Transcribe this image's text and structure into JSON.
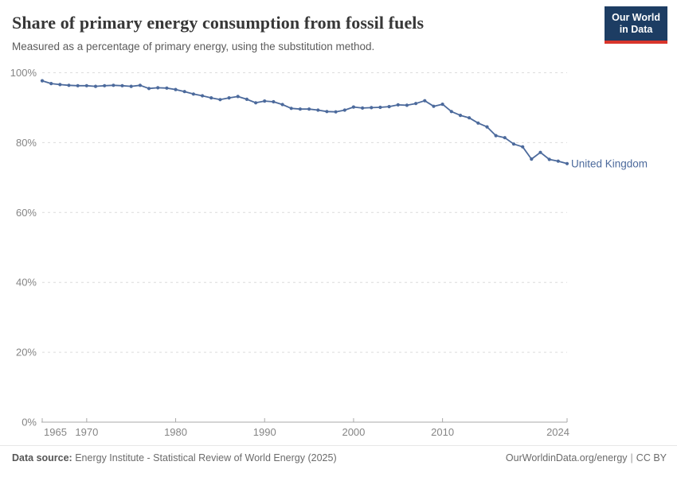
{
  "header": {
    "title": "Share of primary energy consumption from fossil fuels",
    "subtitle": "Measured as a percentage of primary energy, using the substitution method.",
    "logo": {
      "line1": "Our World",
      "line2": "in Data"
    }
  },
  "chart_data": {
    "type": "line",
    "title": "Share of primary energy consumption from fossil fuels",
    "entity_label": "United Kingdom",
    "xlim": [
      1965,
      2024
    ],
    "ylim": [
      0,
      100
    ],
    "grid": "horizontal-dashed",
    "legend_position": "line-end-label",
    "line_color": "#4c6a9c",
    "grid_color": "#dcdcdc",
    "axis_color": "#a8a8a8",
    "tick_label_color": "#858585",
    "y_ticks": [
      {
        "value": 0,
        "label": "0%"
      },
      {
        "value": 20,
        "label": "20%"
      },
      {
        "value": 40,
        "label": "40%"
      },
      {
        "value": 60,
        "label": "60%"
      },
      {
        "value": 80,
        "label": "80%"
      },
      {
        "value": 100,
        "label": "100%"
      }
    ],
    "x_ticks": [
      {
        "value": 1965,
        "label": "1965"
      },
      {
        "value": 1970,
        "label": "1970"
      },
      {
        "value": 1980,
        "label": "1980"
      },
      {
        "value": 1990,
        "label": "1990"
      },
      {
        "value": 2000,
        "label": "2000"
      },
      {
        "value": 2010,
        "label": "2010"
      },
      {
        "value": 2024,
        "label": "2024"
      }
    ],
    "series": [
      {
        "name": "United Kingdom",
        "x": [
          1965,
          1966,
          1967,
          1968,
          1969,
          1970,
          1971,
          1972,
          1973,
          1974,
          1975,
          1976,
          1977,
          1978,
          1979,
          1980,
          1981,
          1982,
          1983,
          1984,
          1985,
          1986,
          1987,
          1988,
          1989,
          1990,
          1991,
          1992,
          1993,
          1994,
          1995,
          1996,
          1997,
          1998,
          1999,
          2000,
          2001,
          2002,
          2003,
          2004,
          2005,
          2006,
          2007,
          2008,
          2009,
          2010,
          2011,
          2012,
          2013,
          2014,
          2015,
          2016,
          2017,
          2018,
          2019,
          2020,
          2021,
          2022,
          2023,
          2024
        ],
        "values": [
          97.7,
          96.9,
          96.6,
          96.4,
          96.3,
          96.3,
          96.1,
          96.3,
          96.4,
          96.3,
          96.1,
          96.4,
          95.5,
          95.7,
          95.6,
          95.2,
          94.6,
          93.9,
          93.4,
          92.8,
          92.3,
          92.8,
          93.2,
          92.4,
          91.4,
          91.9,
          91.7,
          90.9,
          89.8,
          89.6,
          89.6,
          89.3,
          88.9,
          88.8,
          89.3,
          90.2,
          89.9,
          90.0,
          90.1,
          90.3,
          90.8,
          90.7,
          91.2,
          92.0,
          90.4,
          91.0,
          88.9,
          87.8,
          87.1,
          85.6,
          84.5,
          82.0,
          81.4,
          79.6,
          78.8,
          75.3,
          77.2,
          75.2,
          74.7,
          74.0
        ]
      }
    ]
  },
  "footer": {
    "datasource_label": "Data source:",
    "datasource": "Energy Institute - Statistical Review of World Energy (2025)",
    "site": "OurWorldinData.org/energy",
    "separator": "|",
    "license": "CC BY"
  }
}
